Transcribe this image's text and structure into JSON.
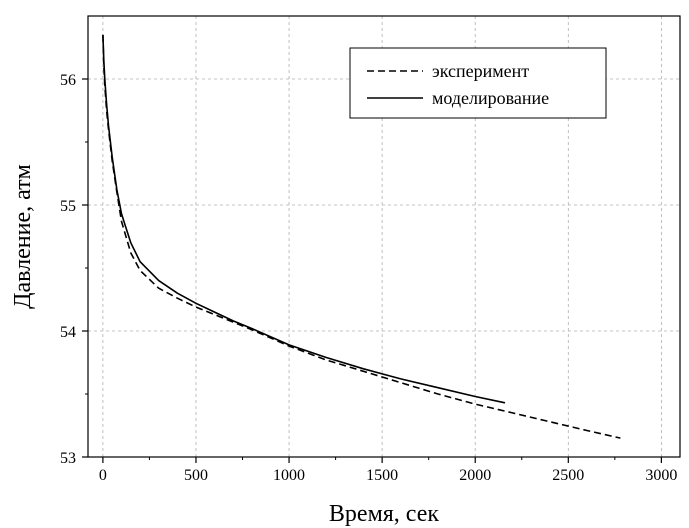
{
  "chart_data": {
    "type": "line",
    "xlabel": "Время, сек",
    "ylabel": "Давление, атм",
    "xlim": [
      -80,
      3100
    ],
    "ylim": [
      53,
      56.5
    ],
    "xticks": [
      0,
      500,
      1000,
      1500,
      2000,
      2500,
      3000
    ],
    "yticks": [
      53,
      54,
      55,
      56
    ],
    "grid": true,
    "legend_position": "top-right",
    "series": [
      {
        "name": "эксперимент",
        "style": "dashed",
        "color": "#000000",
        "x": [
          0,
          5,
          10,
          20,
          30,
          50,
          75,
          100,
          150,
          200,
          300,
          400,
          500,
          600,
          700,
          800,
          1000,
          1200,
          1400,
          1600,
          1800,
          2000,
          2200,
          2400,
          2600,
          2780
        ],
        "y": [
          56.35,
          56.1,
          55.95,
          55.75,
          55.6,
          55.35,
          55.1,
          54.87,
          54.62,
          54.48,
          54.34,
          54.26,
          54.19,
          54.13,
          54.07,
          54.01,
          53.88,
          53.77,
          53.68,
          53.59,
          53.5,
          53.42,
          53.35,
          53.28,
          53.21,
          53.15
        ]
      },
      {
        "name": "моделирование",
        "style": "solid",
        "color": "#000000",
        "x": [
          0,
          5,
          10,
          20,
          30,
          50,
          75,
          100,
          150,
          200,
          300,
          400,
          500,
          600,
          700,
          800,
          1000,
          1200,
          1400,
          1600,
          1800,
          2000,
          2160
        ],
        "y": [
          56.35,
          56.15,
          56.0,
          55.8,
          55.63,
          55.38,
          55.12,
          54.93,
          54.7,
          54.55,
          54.4,
          54.3,
          54.22,
          54.15,
          54.08,
          54.02,
          53.89,
          53.79,
          53.7,
          53.62,
          53.55,
          53.48,
          53.43
        ]
      }
    ]
  }
}
